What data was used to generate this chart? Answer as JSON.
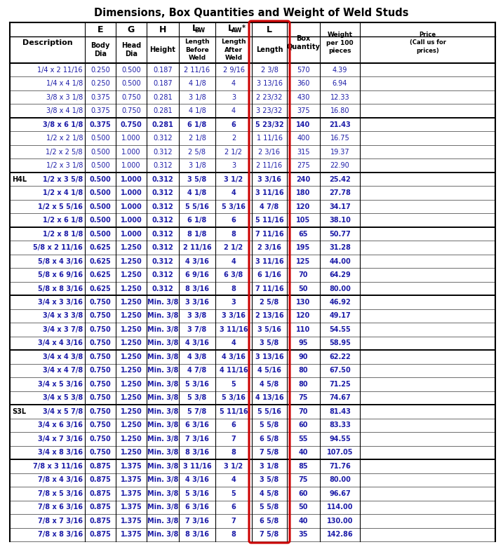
{
  "title": "Dimensions, Box Quantities and Weight of Weld Studs",
  "rows": [
    [
      "1/4 x 2 11/16",
      "0.250",
      "0.500",
      "0.187",
      "2 11/16",
      "2 9/16",
      "2 3/8",
      "570",
      "4.39",
      ""
    ],
    [
      "1/4 x 4 1/8",
      "0.250",
      "0.500",
      "0.187",
      "4 1/8",
      "4",
      "3 13/16",
      "360",
      "6.94",
      ""
    ],
    [
      "3/8 x 3 1/8",
      "0.375",
      "0.750",
      "0.281",
      "3 1/8",
      "3",
      "2 23/32",
      "430",
      "12.33",
      ""
    ],
    [
      "3/8 x 4 1/8",
      "0.375",
      "0.750",
      "0.281",
      "4 1/8",
      "4",
      "3 23/32",
      "375",
      "16.80",
      ""
    ],
    [
      "3/8 x 6 1/8",
      "0.375",
      "0.750",
      "0.281",
      "6 1/8",
      "6",
      "5 23/32",
      "140",
      "21.43",
      ""
    ],
    [
      "1/2 x 2 1/8",
      "0.500",
      "1.000",
      "0.312",
      "2 1/8",
      "2",
      "1 11/16",
      "400",
      "16.75",
      ""
    ],
    [
      "1/2 x 2 5/8",
      "0.500",
      "1.000",
      "0.312",
      "2 5/8",
      "2 1/2",
      "2 3/16",
      "315",
      "19.37",
      ""
    ],
    [
      "1/2 x 3 1/8",
      "0.500",
      "1.000",
      "0.312",
      "3 1/8",
      "3",
      "2 11/16",
      "275",
      "22.90",
      ""
    ],
    [
      "1/2 x 3 5/8",
      "0.500",
      "1.000",
      "0.312",
      "3 5/8",
      "3 1/2",
      "3 3/16",
      "240",
      "25.42",
      ""
    ],
    [
      "1/2 x 4 1/8",
      "0.500",
      "1.000",
      "0.312",
      "4 1/8",
      "4",
      "3 11/16",
      "180",
      "27.78",
      ""
    ],
    [
      "1/2 x 5 5/16",
      "0.500",
      "1.000",
      "0.312",
      "5 5/16",
      "5 3/16",
      "4 7/8",
      "120",
      "34.17",
      ""
    ],
    [
      "1/2 x 6 1/8",
      "0.500",
      "1.000",
      "0.312",
      "6 1/8",
      "6",
      "5 11/16",
      "105",
      "38.10",
      ""
    ],
    [
      "1/2 x 8 1/8",
      "0.500",
      "1.000",
      "0.312",
      "8 1/8",
      "8",
      "7 11/16",
      "65",
      "50.77",
      ""
    ],
    [
      "5/8 x 2 11/16",
      "0.625",
      "1.250",
      "0.312",
      "2 11/16",
      "2 1/2",
      "2 3/16",
      "195",
      "31.28",
      ""
    ],
    [
      "5/8 x 4 3/16",
      "0.625",
      "1.250",
      "0.312",
      "4 3/16",
      "4",
      "3 11/16",
      "125",
      "44.00",
      ""
    ],
    [
      "5/8 x 6 9/16",
      "0.625",
      "1.250",
      "0.312",
      "6 9/16",
      "6 3/8",
      "6 1/16",
      "70",
      "64.29",
      ""
    ],
    [
      "5/8 x 8 3/16",
      "0.625",
      "1.250",
      "0.312",
      "8 3/16",
      "8",
      "7 11/16",
      "50",
      "80.00",
      ""
    ],
    [
      "3/4 x 3 3/16",
      "0.750",
      "1.250",
      "Min. 3/8",
      "3 3/16",
      "3",
      "2 5/8",
      "130",
      "46.92",
      ""
    ],
    [
      "3/4 x 3 3/8",
      "0.750",
      "1.250",
      "Min. 3/8",
      "3 3/8",
      "3 3/16",
      "2 13/16",
      "120",
      "49.17",
      ""
    ],
    [
      "3/4 x 3 7/8",
      "0.750",
      "1.250",
      "Min. 3/8",
      "3 7/8",
      "3 11/16",
      "3 5/16",
      "110",
      "54.55",
      ""
    ],
    [
      "3/4 x 4 3/16",
      "0.750",
      "1.250",
      "Min. 3/8",
      "4 3/16",
      "4",
      "3 5/8",
      "95",
      "58.95",
      ""
    ],
    [
      "3/4 x 4 3/8",
      "0.750",
      "1.250",
      "Min. 3/8",
      "4 3/8",
      "4 3/16",
      "3 13/16",
      "90",
      "62.22",
      ""
    ],
    [
      "3/4 x 4 7/8",
      "0.750",
      "1.250",
      "Min. 3/8",
      "4 7/8",
      "4 11/16",
      "4 5/16",
      "80",
      "67.50",
      ""
    ],
    [
      "3/4 x 5 3/16",
      "0.750",
      "1.250",
      "Min. 3/8",
      "5 3/16",
      "5",
      "4 5/8",
      "80",
      "71.25",
      ""
    ],
    [
      "3/4 x 5 3/8",
      "0.750",
      "1.250",
      "Min. 3/8",
      "5 3/8",
      "5 3/16",
      "4 13/16",
      "75",
      "74.67",
      ""
    ],
    [
      "3/4 x 5 7/8",
      "0.750",
      "1.250",
      "Min. 3/8",
      "5 7/8",
      "5 11/16",
      "5 5/16",
      "70",
      "81.43",
      ""
    ],
    [
      "3/4 x 6 3/16",
      "0.750",
      "1.250",
      "Min. 3/8",
      "6 3/16",
      "6",
      "5 5/8",
      "60",
      "83.33",
      ""
    ],
    [
      "3/4 x 7 3/16",
      "0.750",
      "1.250",
      "Min. 3/8",
      "7 3/16",
      "7",
      "6 5/8",
      "55",
      "94.55",
      ""
    ],
    [
      "3/4 x 8 3/16",
      "0.750",
      "1.250",
      "Min. 3/8",
      "8 3/16",
      "8",
      "7 5/8",
      "40",
      "107.05",
      ""
    ],
    [
      "7/8 x 3 11/16",
      "0.875",
      "1.375",
      "Min. 3/8",
      "3 11/16",
      "3 1/2",
      "3 1/8",
      "85",
      "71.76",
      ""
    ],
    [
      "7/8 x 4 3/16",
      "0.875",
      "1.375",
      "Min. 3/8",
      "4 3/16",
      "4",
      "3 5/8",
      "75",
      "80.00",
      ""
    ],
    [
      "7/8 x 5 3/16",
      "0.875",
      "1.375",
      "Min. 3/8",
      "5 3/16",
      "5",
      "4 5/8",
      "60",
      "96.67",
      ""
    ],
    [
      "7/8 x 6 3/16",
      "0.875",
      "1.375",
      "Min. 3/8",
      "6 3/16",
      "6",
      "5 5/8",
      "50",
      "114.00",
      ""
    ],
    [
      "7/8 x 7 3/16",
      "0.875",
      "1.375",
      "Min. 3/8",
      "7 3/16",
      "7",
      "6 5/8",
      "40",
      "130.00",
      ""
    ],
    [
      "7/8 x 8 3/16",
      "0.875",
      "1.375",
      "Min. 3/8",
      "8 3/16",
      "8",
      "7 5/8",
      "35",
      "142.86",
      ""
    ]
  ],
  "group_sep_after": [
    3,
    7,
    11,
    16,
    20,
    24,
    28
  ],
  "h4l_row": 8,
  "s3l_row": 25,
  "bold_rows": [
    4,
    8,
    9,
    10,
    11,
    12,
    13,
    14,
    15,
    16,
    17,
    18,
    19,
    20,
    21,
    22,
    23,
    24,
    25,
    26,
    27,
    28,
    29,
    30,
    31,
    32,
    33,
    34
  ],
  "text_color": "#1c1ca8",
  "title_color": "#000000"
}
